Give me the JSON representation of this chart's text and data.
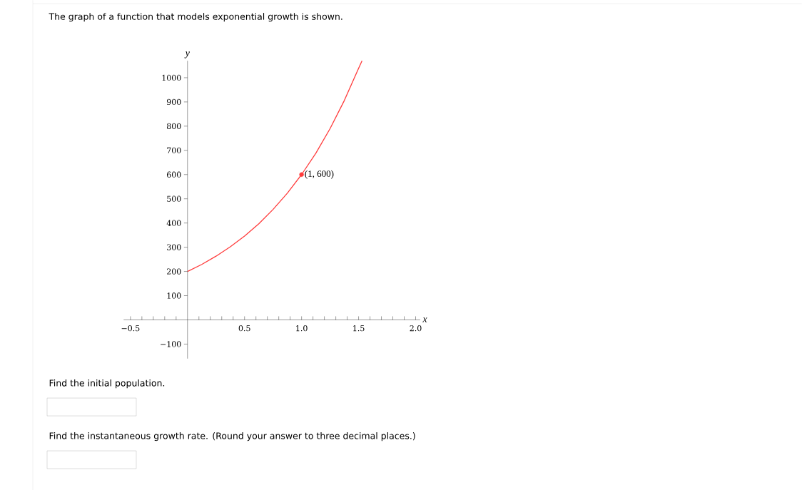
{
  "chart_data": {
    "type": "line",
    "title": "The graph of a function that models exponential growth is shown.",
    "xlabel": "x",
    "ylabel": "y",
    "xlim": [
      -0.56,
      2.04
    ],
    "ylim": [
      -160,
      1070
    ],
    "xticks": [
      {
        "value": -0.5,
        "label": "−0.5"
      },
      {
        "value": -0.4,
        "label": null
      },
      {
        "value": -0.3,
        "label": null
      },
      {
        "value": -0.2,
        "label": null
      },
      {
        "value": -0.1,
        "label": null
      },
      {
        "value": 0.1,
        "label": null
      },
      {
        "value": 0.2,
        "label": null
      },
      {
        "value": 0.3,
        "label": null
      },
      {
        "value": 0.4,
        "label": null
      },
      {
        "value": 0.5,
        "label": "0.5"
      },
      {
        "value": 0.6,
        "label": null
      },
      {
        "value": 0.7,
        "label": null
      },
      {
        "value": 0.8,
        "label": null
      },
      {
        "value": 0.9,
        "label": null
      },
      {
        "value": 1.0,
        "label": "1.0"
      },
      {
        "value": 1.1,
        "label": null
      },
      {
        "value": 1.2,
        "label": null
      },
      {
        "value": 1.3,
        "label": null
      },
      {
        "value": 1.4,
        "label": null
      },
      {
        "value": 1.5,
        "label": "1.5"
      },
      {
        "value": 1.6,
        "label": null
      },
      {
        "value": 1.7,
        "label": null
      },
      {
        "value": 1.8,
        "label": null
      },
      {
        "value": 1.9,
        "label": null
      },
      {
        "value": 2.0,
        "label": "2.0"
      }
    ],
    "yticks": [
      {
        "value": -100,
        "label": "−100"
      },
      100,
      200,
      300,
      400,
      500,
      600,
      700,
      800,
      900,
      1000
    ],
    "series": [
      {
        "type": "line",
        "color": "#ff3b3b",
        "marker": "none",
        "x": [
          0,
          0.125,
          0.25,
          0.375,
          0.5,
          0.625,
          0.75,
          0.875,
          1.0,
          1.125,
          1.25,
          1.375,
          1.5,
          1.53
        ],
        "values": [
          200,
          229,
          263,
          302,
          346,
          397,
          456,
          523,
          600,
          688,
          790,
          906,
          1039,
          1070
        ]
      },
      {
        "type": "scatter",
        "color": "#ff3b3b",
        "marker": "circle",
        "x": [
          1.0
        ],
        "values": [
          600
        ]
      }
    ],
    "annotations": [
      {
        "text": "(1, 600)",
        "x": 1.0,
        "y": 600
      },
      "Find the initial population.",
      "Find the instantaneous growth rate. (Round your answer to three decimal places.)"
    ]
  }
}
